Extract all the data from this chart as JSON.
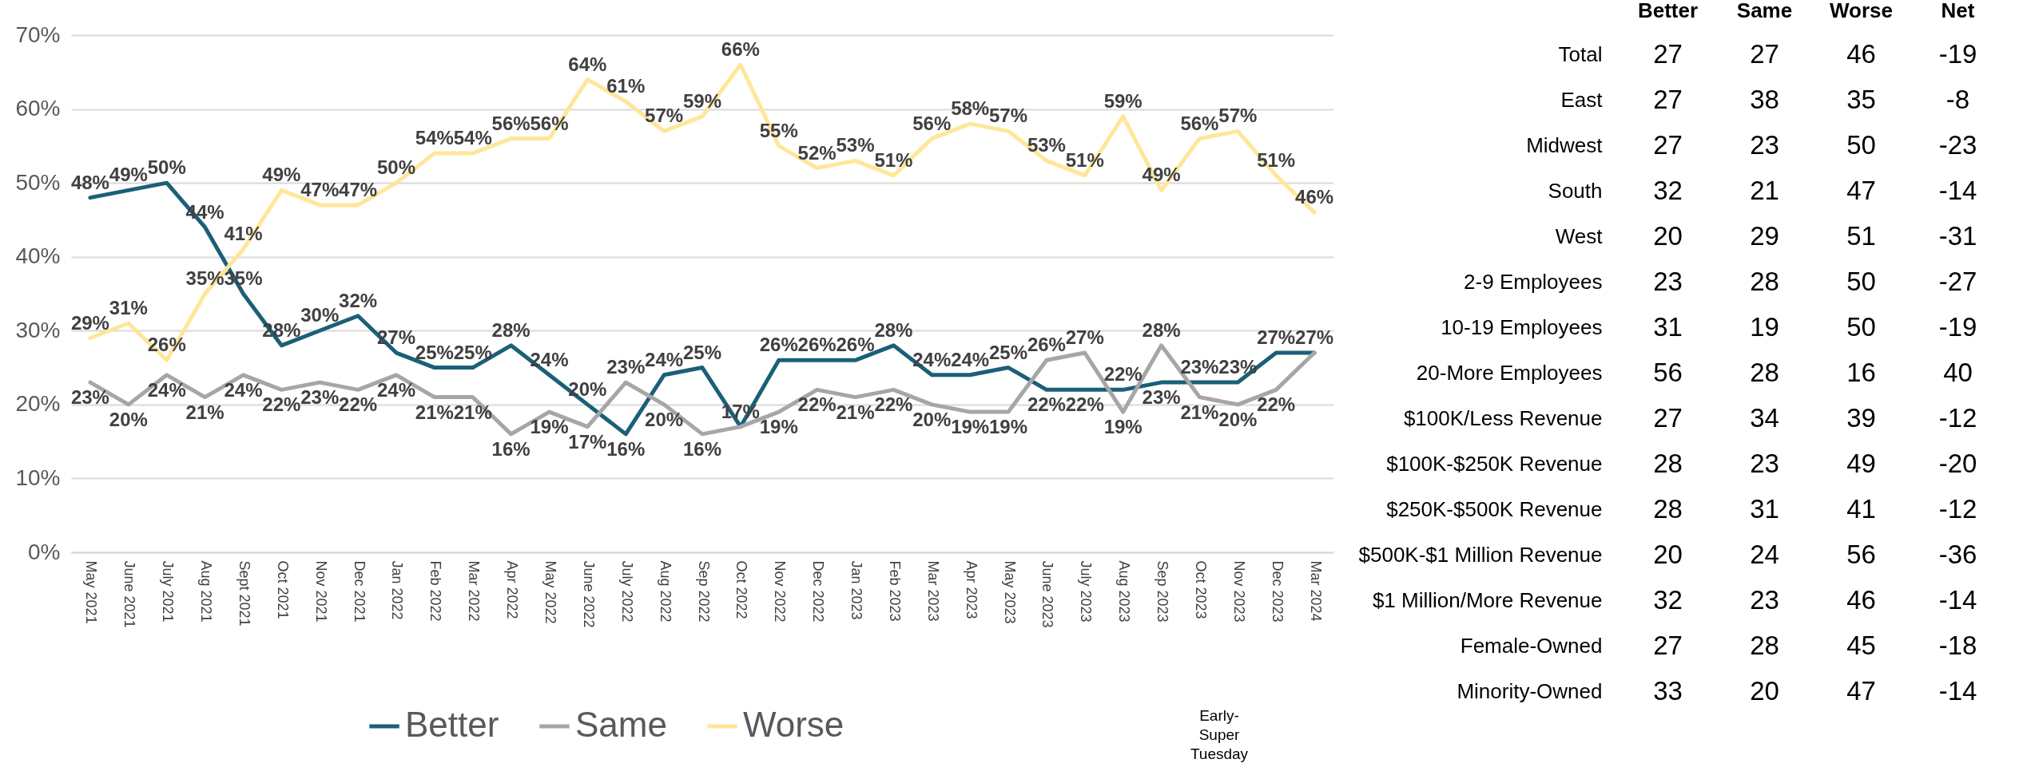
{
  "chart_data": [
    {
      "type": "line",
      "categories": [
        "May 2021",
        "June 2021",
        "July 2021",
        "Aug 2021",
        "Sept 2021",
        "Oct 2021",
        "Nov 2021",
        "Dec 2021",
        "Jan 2022",
        "Feb 2022",
        "Mar 2022",
        "Apr 2022",
        "May 2022",
        "June 2022",
        "July 2022",
        "Aug 2022",
        "Sep 2022",
        "Oct 2022",
        "Nov 2022",
        "Dec 2022",
        "Jan 2023",
        "Feb 2023",
        "Mar 2023",
        "Apr 2023",
        "May 2023",
        "June 2023",
        "July 2023",
        "Aug 2023",
        "Sep 2023",
        "Oct 2023",
        "Nov 2023",
        "Dec 2023",
        "Mar 2024"
      ],
      "series": [
        {
          "name": "Better",
          "color": "#1b5f78",
          "values": [
            48,
            49,
            50,
            44,
            35,
            28,
            30,
            32,
            27,
            25,
            25,
            28,
            24,
            20,
            16,
            24,
            25,
            17,
            26,
            26,
            26,
            28,
            24,
            24,
            25,
            22,
            22,
            22,
            23,
            23,
            23,
            27,
            27
          ],
          "value_labels": [
            "48%",
            "49%",
            "50%",
            "44%",
            "35%",
            "28%",
            "30%",
            "32%",
            "27%",
            "25%",
            "25%",
            "28%",
            "24%",
            "20%",
            "16%",
            "24%",
            "25%",
            "17%",
            "26%",
            "26%",
            "26%",
            "28%",
            "24%",
            "24%",
            "25%",
            "22%",
            "22%",
            "22%",
            "23%",
            "23%",
            "23%",
            "27%",
            "27%"
          ]
        },
        {
          "name": "Same",
          "color": "#a6a6a6",
          "values": [
            23,
            20,
            24,
            21,
            24,
            22,
            23,
            22,
            24,
            21,
            21,
            16,
            19,
            17,
            23,
            20,
            16,
            17,
            19,
            22,
            21,
            22,
            20,
            19,
            19,
            26,
            27,
            19,
            28,
            21,
            20,
            22,
            27
          ],
          "value_labels": [
            "23%",
            "20%",
            "24%",
            "21%",
            "24%",
            "22%",
            "23%",
            "22%",
            "24%",
            "21%",
            "21%",
            "16%",
            "19%",
            "17%",
            "23%",
            "20%",
            "16%",
            null,
            "19%",
            "22%",
            "21%",
            "22%",
            "20%",
            "19%",
            "19%",
            "26%",
            "27%",
            "19%",
            "28%",
            "21%",
            "20%",
            "22%",
            null
          ]
        },
        {
          "name": "Worse",
          "color": "#ffe699",
          "values": [
            29,
            31,
            26,
            35,
            41,
            49,
            47,
            47,
            50,
            54,
            54,
            56,
            56,
            64,
            61,
            57,
            59,
            66,
            55,
            52,
            53,
            51,
            56,
            58,
            57,
            53,
            51,
            59,
            49,
            56,
            57,
            51,
            46
          ],
          "value_labels": [
            "29%",
            "31%",
            "26%",
            "35%",
            "41%",
            "49%",
            "47%",
            "47%",
            "50%",
            "54%",
            "54%",
            "56%",
            "56%",
            "64%",
            "61%",
            "57%",
            "59%",
            "66%",
            "55%",
            "52%",
            "53%",
            "51%",
            "56%",
            "58%",
            "57%",
            "53%",
            "51%",
            "59%",
            "49%",
            "56%",
            "57%",
            "51%",
            "46%"
          ]
        }
      ],
      "ylim": [
        0,
        70
      ],
      "yticks": [
        {
          "value": 0,
          "label": "0%"
        },
        {
          "value": 10,
          "label": "10%"
        },
        {
          "value": 20,
          "label": "20%"
        },
        {
          "value": 30,
          "label": "30%"
        },
        {
          "value": 40,
          "label": "40%"
        },
        {
          "value": 50,
          "label": "50%"
        },
        {
          "value": 60,
          "label": "60%"
        },
        {
          "value": 70,
          "label": "70%"
        }
      ],
      "grid": "y",
      "legend": "bottom",
      "annotations": [
        "Early-Super Tuesday"
      ]
    },
    {
      "type": "heatmap",
      "categories": [
        "Better",
        "Same",
        "Worse",
        "Net"
      ],
      "y_categories": [
        "Total",
        "East",
        "Midwest",
        "South",
        "West",
        "2-9 Employees",
        "10-19 Employees",
        "20-More Employees",
        "$100K/Less Revenue",
        "$100K-$250K Revenue",
        "$250K-$500K Revenue",
        "$500K-$1 Million Revenue",
        "$1 Million/More Revenue",
        "Female-Owned",
        "Minority-Owned"
      ],
      "cells": [
        [
          27,
          27,
          46,
          -19
        ],
        [
          27,
          38,
          35,
          -8
        ],
        [
          27,
          23,
          50,
          -23
        ],
        [
          32,
          21,
          47,
          -14
        ],
        [
          20,
          29,
          51,
          -31
        ],
        [
          23,
          28,
          50,
          -27
        ],
        [
          31,
          19,
          50,
          -19
        ],
        [
          56,
          28,
          16,
          40
        ],
        [
          27,
          34,
          39,
          -12
        ],
        [
          28,
          23,
          49,
          -20
        ],
        [
          28,
          31,
          41,
          -12
        ],
        [
          20,
          24,
          56,
          -36
        ],
        [
          32,
          23,
          46,
          -14
        ],
        [
          27,
          28,
          45,
          -18
        ],
        [
          33,
          20,
          47,
          -14
        ]
      ],
      "data_labels": true
    }
  ]
}
